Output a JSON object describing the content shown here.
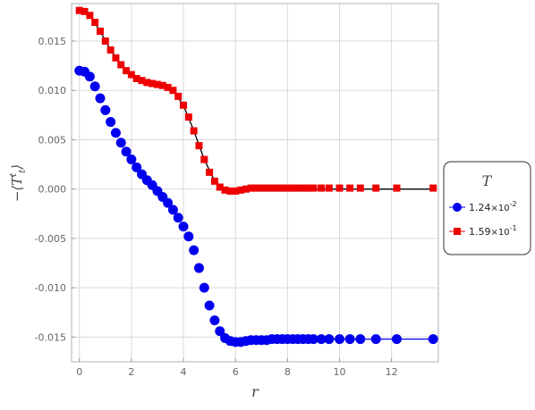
{
  "chart_data": {
    "type": "scatter",
    "xlabel": "r",
    "ylabel_main": "−⟨T",
    "ylabel_sup": "t",
    "ylabel_sub": "t",
    "ylabel_close": "⟩",
    "xlim": [
      -0.3,
      13.8
    ],
    "ylim": [
      -0.0175,
      0.0188
    ],
    "grid": true,
    "x_ticks": [
      {
        "value": 0,
        "label": "0"
      },
      {
        "value": 2,
        "label": "2"
      },
      {
        "value": 4,
        "label": "4"
      },
      {
        "value": 6,
        "label": "6"
      },
      {
        "value": 8,
        "label": "8"
      },
      {
        "value": 10,
        "label": "10"
      },
      {
        "value": 12,
        "label": "12"
      }
    ],
    "y_ticks": [
      {
        "value": 0.015,
        "label": "0.015"
      },
      {
        "value": 0.01,
        "label": "0.010"
      },
      {
        "value": 0.005,
        "label": "0.005"
      },
      {
        "value": 0.0,
        "label": "0.000"
      },
      {
        "value": -0.005,
        "label": "-0.005"
      },
      {
        "value": -0.01,
        "label": "-0.010"
      },
      {
        "value": -0.015,
        "label": "-0.015"
      }
    ],
    "legend": {
      "title": "T",
      "placement": "right",
      "entries": [
        {
          "mantissa": "1.24",
          "exponent": "-2",
          "color": "#0000ee",
          "marker": "circle"
        },
        {
          "mantissa": "1.59",
          "exponent": "-1",
          "color": "#ee0000",
          "marker": "square"
        }
      ]
    },
    "series": [
      {
        "color": "#0000ee",
        "marker": "circle",
        "points": [
          [
            0.0,
            0.012
          ],
          [
            0.2,
            0.0119
          ],
          [
            0.4,
            0.0114
          ],
          [
            0.6,
            0.0104
          ],
          [
            0.8,
            0.0092
          ],
          [
            1.0,
            0.008
          ],
          [
            1.2,
            0.0068
          ],
          [
            1.4,
            0.0057
          ],
          [
            1.6,
            0.0047
          ],
          [
            1.8,
            0.0038
          ],
          [
            2.0,
            0.003
          ],
          [
            2.2,
            0.0022
          ],
          [
            2.4,
            0.0015
          ],
          [
            2.6,
            0.0009
          ],
          [
            2.8,
            0.0004
          ],
          [
            3.0,
            -0.0002
          ],
          [
            3.2,
            -0.0008
          ],
          [
            3.4,
            -0.0014
          ],
          [
            3.6,
            -0.0021
          ],
          [
            3.8,
            -0.0029
          ],
          [
            4.0,
            -0.0038
          ],
          [
            4.2,
            -0.0048
          ],
          [
            4.4,
            -0.0062
          ],
          [
            4.6,
            -0.008
          ],
          [
            4.8,
            -0.01
          ],
          [
            5.0,
            -0.0118
          ],
          [
            5.2,
            -0.0133
          ],
          [
            5.4,
            -0.0144
          ],
          [
            5.6,
            -0.0151
          ],
          [
            5.8,
            -0.0154
          ],
          [
            6.0,
            -0.0155
          ],
          [
            6.2,
            -0.0155
          ],
          [
            6.4,
            -0.0154
          ],
          [
            6.6,
            -0.0153
          ],
          [
            6.8,
            -0.0153
          ],
          [
            7.0,
            -0.0153
          ],
          [
            7.2,
            -0.0153
          ],
          [
            7.4,
            -0.0152
          ],
          [
            7.6,
            -0.0152
          ],
          [
            7.8,
            -0.0152
          ],
          [
            8.0,
            -0.0152
          ],
          [
            8.2,
            -0.0152
          ],
          [
            8.4,
            -0.0152
          ],
          [
            8.6,
            -0.0152
          ],
          [
            8.8,
            -0.0152
          ],
          [
            9.0,
            -0.0152
          ],
          [
            9.3,
            -0.0152
          ],
          [
            9.6,
            -0.0152
          ],
          [
            10.0,
            -0.0152
          ],
          [
            10.4,
            -0.0152
          ],
          [
            10.8,
            -0.0152
          ],
          [
            11.4,
            -0.0152
          ],
          [
            12.2,
            -0.0152
          ],
          [
            13.6,
            -0.0152
          ]
        ]
      },
      {
        "color": "#ee0000",
        "marker": "square",
        "points": [
          [
            0.0,
            0.0181
          ],
          [
            0.2,
            0.018
          ],
          [
            0.4,
            0.0176
          ],
          [
            0.6,
            0.0169
          ],
          [
            0.8,
            0.016
          ],
          [
            1.0,
            0.015
          ],
          [
            1.2,
            0.0141
          ],
          [
            1.4,
            0.0133
          ],
          [
            1.6,
            0.0126
          ],
          [
            1.8,
            0.012
          ],
          [
            2.0,
            0.0116
          ],
          [
            2.2,
            0.0112
          ],
          [
            2.4,
            0.011
          ],
          [
            2.6,
            0.0108
          ],
          [
            2.8,
            0.0107
          ],
          [
            3.0,
            0.0106
          ],
          [
            3.2,
            0.0105
          ],
          [
            3.4,
            0.0103
          ],
          [
            3.6,
            0.01
          ],
          [
            3.8,
            0.0094
          ],
          [
            4.0,
            0.0085
          ],
          [
            4.2,
            0.0073
          ],
          [
            4.4,
            0.0059
          ],
          [
            4.6,
            0.0044
          ],
          [
            4.8,
            0.003
          ],
          [
            5.0,
            0.0017
          ],
          [
            5.2,
            0.0008
          ],
          [
            5.4,
            0.0002
          ],
          [
            5.6,
            -0.0001
          ],
          [
            5.8,
            -0.0002
          ],
          [
            6.0,
            -0.0002
          ],
          [
            6.2,
            -0.0001
          ],
          [
            6.4,
            0.0
          ],
          [
            6.6,
            0.0001
          ],
          [
            6.8,
            0.0001
          ],
          [
            7.0,
            0.0001
          ],
          [
            7.2,
            0.0001
          ],
          [
            7.4,
            0.0001
          ],
          [
            7.6,
            0.0001
          ],
          [
            7.8,
            0.0001
          ],
          [
            8.0,
            0.0001
          ],
          [
            8.2,
            0.0001
          ],
          [
            8.4,
            0.0001
          ],
          [
            8.6,
            0.0001
          ],
          [
            8.8,
            0.0001
          ],
          [
            9.0,
            0.0001
          ],
          [
            9.3,
            0.0001
          ],
          [
            9.6,
            0.0001
          ],
          [
            10.0,
            0.0001
          ],
          [
            10.4,
            0.0001
          ],
          [
            10.8,
            0.0001
          ],
          [
            11.4,
            0.0001
          ],
          [
            12.2,
            0.0001
          ],
          [
            13.6,
            0.0001
          ]
        ]
      }
    ],
    "fit_lines": [
      {
        "color": "#000000",
        "points": [
          [
            0.0,
            0.0181
          ],
          [
            0.4,
            0.0176
          ],
          [
            0.8,
            0.016
          ],
          [
            1.2,
            0.0141
          ],
          [
            1.6,
            0.0126
          ],
          [
            2.0,
            0.0116
          ],
          [
            2.4,
            0.011
          ],
          [
            2.8,
            0.0107
          ],
          [
            3.2,
            0.0105
          ],
          [
            3.6,
            0.01
          ],
          [
            4.0,
            0.0085
          ],
          [
            4.4,
            0.0059
          ],
          [
            4.8,
            0.003
          ],
          [
            5.2,
            0.0008
          ],
          [
            5.6,
            -0.0001
          ],
          [
            6.0,
            -0.0002
          ],
          [
            6.4,
            0.0
          ],
          [
            7.0,
            0.0
          ],
          [
            13.6,
            0.0
          ]
        ]
      },
      {
        "color": "#0000ee",
        "points": [
          [
            6.0,
            -0.0155
          ],
          [
            7.0,
            -0.0153
          ],
          [
            8.0,
            -0.0152
          ],
          [
            13.6,
            -0.0152
          ]
        ]
      }
    ]
  }
}
